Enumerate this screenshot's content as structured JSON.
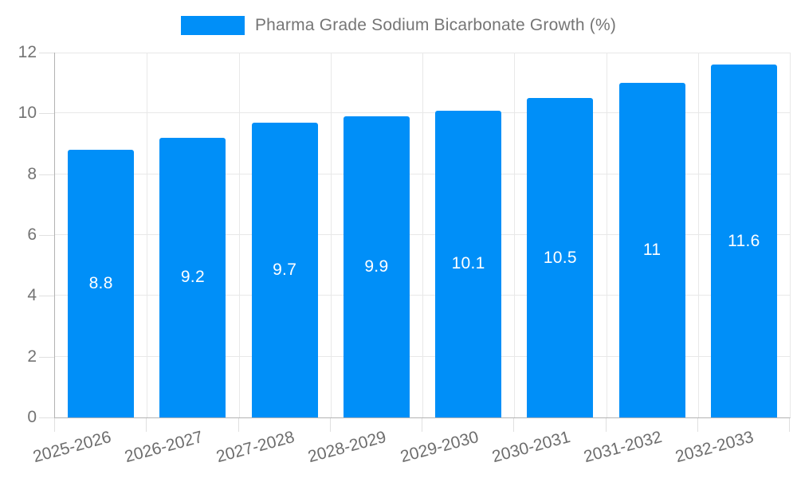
{
  "legend": {
    "label": "Pharma Grade Sodium Bicarbonate Growth (%)"
  },
  "chart_data": {
    "type": "bar",
    "title": "Pharma Grade Sodium Bicarbonate Growth (%)",
    "categories": [
      "2025-2026",
      "2026-2027",
      "2027-2028",
      "2028-2029",
      "2029-2030",
      "2030-2031",
      "2031-2032",
      "2032-2033"
    ],
    "values": [
      8.8,
      9.2,
      9.7,
      9.9,
      10.1,
      10.5,
      11,
      11.6
    ],
    "value_labels": [
      "8.8",
      "9.2",
      "9.7",
      "9.9",
      "10.1",
      "10.5",
      "11",
      "11.6"
    ],
    "xlabel": "",
    "ylabel": "",
    "ylim": [
      0,
      12
    ],
    "yticks": [
      0,
      2,
      4,
      6,
      8,
      10,
      12
    ],
    "grid": true,
    "legend_position": "top-center"
  },
  "colors": {
    "bar": "#008ff8",
    "bar_value_label": "#ffffff",
    "axis_line": "#b3b3b3",
    "gridline": "#e8e8e8",
    "tick": "#e0e0e0",
    "axis_label_text": "#6d6d6d",
    "legend_text": "#757575",
    "background": "#ffffff"
  }
}
